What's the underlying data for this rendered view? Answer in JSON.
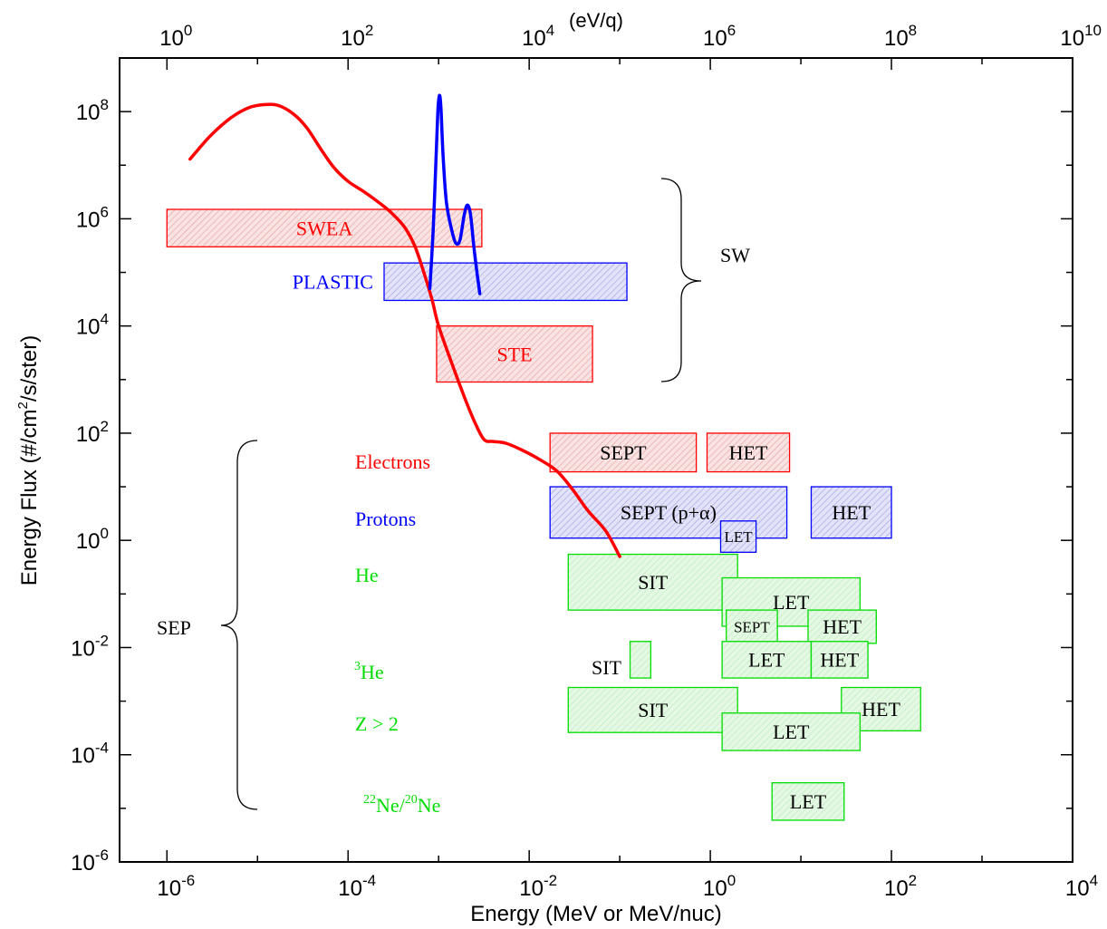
{
  "chart_data": {
    "type": "line",
    "title": "",
    "xlabel": "Energy (MeV or MeV/nuc)",
    "ylabel": "Energy Flux (#/cm²/s/ster)",
    "ylabel_parts": {
      "pre": "Energy Flux (#/cm",
      "sup": "2",
      "post": "/s/ster)"
    },
    "x_scale": "log",
    "y_scale": "log",
    "xlim": [
      3e-07,
      10000
    ],
    "ylim": [
      1e-06,
      1000000000.0
    ],
    "grid": false,
    "x_ticks": [
      {
        "value": 1e-06,
        "base": "10",
        "exp": "-6"
      },
      {
        "value": 0.0001,
        "base": "10",
        "exp": "-4"
      },
      {
        "value": 0.01,
        "base": "10",
        "exp": "-2"
      },
      {
        "value": 1,
        "base": "10",
        "exp": "0"
      },
      {
        "value": 100,
        "base": "10",
        "exp": "2"
      },
      {
        "value": 10000,
        "base": "10",
        "exp": "4"
      }
    ],
    "y_ticks": [
      {
        "value": 1e-06,
        "base": "10",
        "exp": "-6"
      },
      {
        "value": 0.0001,
        "base": "10",
        "exp": "-4"
      },
      {
        "value": 0.01,
        "base": "10",
        "exp": "-2"
      },
      {
        "value": 1,
        "base": "10",
        "exp": "0"
      },
      {
        "value": 100,
        "base": "10",
        "exp": "2"
      },
      {
        "value": 10000.0,
        "base": "10",
        "exp": "4"
      },
      {
        "value": 1000000.0,
        "base": "10",
        "exp": "6"
      },
      {
        "value": 100000000.0,
        "base": "10",
        "exp": "8"
      }
    ],
    "top_axis": {
      "label": "(eV/q)",
      "range": [
        0.3,
        10000000000.0
      ],
      "ticks": [
        {
          "value": 1,
          "base": "10",
          "exp": "0"
        },
        {
          "value": 100,
          "base": "10",
          "exp": "2"
        },
        {
          "value": 10000,
          "base": "10",
          "exp": "4"
        },
        {
          "value": 1000000.0,
          "base": "10",
          "exp": "6"
        },
        {
          "value": 100000000.0,
          "base": "10",
          "exp": "8"
        },
        {
          "value": 10000000000.0,
          "base": "10",
          "exp": "10"
        }
      ]
    },
    "colors": {
      "electron": "#ff0000",
      "electron_fill": "#f7d8d8",
      "proton": "#0000ff",
      "proton_fill": "#d8d8f5",
      "helium": "#00dd00",
      "helium_fill": "#dcf6dc",
      "text": "#000000"
    },
    "series": [
      {
        "kind": "electron-flux-curve",
        "color": "#ff0000",
        "points": [
          [
            1.8e-06,
            13000000.0
          ],
          [
            3e-06,
            35000000.0
          ],
          [
            5e-06,
            75000000.0
          ],
          [
            8e-06,
            118000000.0
          ],
          [
            1.2e-05,
            135000000.0
          ],
          [
            1.7e-05,
            130000000.0
          ],
          [
            2.5e-05,
            90000000.0
          ],
          [
            3.5e-05,
            50000000.0
          ],
          [
            5e-05,
            20000000.0
          ],
          [
            7e-05,
            9000000.0
          ],
          [
            0.0001,
            5000000.0
          ],
          [
            0.00015,
            3200000.0
          ],
          [
            0.00022,
            2000000.0
          ],
          [
            0.0003,
            1300000.0
          ],
          [
            0.00042,
            700000.0
          ],
          [
            0.00055,
            300000.0
          ],
          [
            0.0007,
            90000.0
          ],
          [
            0.00085,
            30000.0
          ],
          [
            0.001,
            10000.0
          ],
          [
            0.0014,
            2000.0
          ],
          [
            0.002,
            400
          ],
          [
            0.0026,
            140
          ],
          [
            0.0032,
            75
          ],
          [
            0.004,
            70
          ],
          [
            0.0055,
            65
          ],
          [
            0.008,
            50
          ],
          [
            0.012,
            35
          ],
          [
            0.02,
            20
          ],
          [
            0.03,
            9
          ],
          [
            0.045,
            3.5
          ],
          [
            0.07,
            1.5
          ],
          [
            0.1,
            0.5
          ]
        ]
      },
      {
        "kind": "solar-wind-ion-curve",
        "color": "#0000ff",
        "points": [
          [
            0.0008,
            50000.0
          ],
          [
            0.00087,
            600000.0
          ],
          [
            0.00093,
            10000000.0
          ],
          [
            0.00098,
            100000000.0
          ],
          [
            0.00102,
            200000000.0
          ],
          [
            0.00106,
            120000000.0
          ],
          [
            0.00112,
            15000000.0
          ],
          [
            0.00122,
            2000000.0
          ],
          [
            0.0014,
            600000.0
          ],
          [
            0.00155,
            350000.0
          ],
          [
            0.00172,
            400000.0
          ],
          [
            0.00192,
            1200000.0
          ],
          [
            0.00208,
            1800000.0
          ],
          [
            0.00225,
            1200000.0
          ],
          [
            0.00245,
            300000.0
          ],
          [
            0.00265,
            100000.0
          ],
          [
            0.00285,
            40000.0
          ]
        ]
      }
    ],
    "instrument_boxes": [
      {
        "label": "SWEA",
        "group": "electron",
        "x": [
          1e-06,
          0.003
        ],
        "y": [
          300000.0,
          1500000.0
        ]
      },
      {
        "label": "PLASTIC",
        "group": "proton",
        "x": [
          0.00025,
          0.12
        ],
        "y": [
          30000.0,
          150000.0
        ]
      },
      {
        "label": "STE",
        "group": "electron",
        "x": [
          0.00095,
          0.05
        ],
        "y": [
          900,
          10000.0
        ]
      },
      {
        "label": "SEPT",
        "group": "electron",
        "x": [
          0.017,
          0.7
        ],
        "y": [
          19,
          100
        ]
      },
      {
        "label": "HET",
        "group": "electron",
        "x": [
          0.92,
          7.5
        ],
        "y": [
          19,
          100
        ]
      },
      {
        "label": "SEPT (p+α)",
        "group": "proton",
        "x": [
          0.017,
          7.0
        ],
        "y": [
          1.1,
          10
        ]
      },
      {
        "label": "HET",
        "group": "proton",
        "x": [
          13,
          100
        ],
        "y": [
          1.1,
          10
        ]
      },
      {
        "label": "LET",
        "group": "proton",
        "x": [
          1.3,
          3.2
        ],
        "y": [
          0.6,
          2.3
        ]
      },
      {
        "label": "SIT",
        "group": "helium",
        "x": [
          0.027,
          2.0
        ],
        "y": [
          0.05,
          0.55
        ]
      },
      {
        "label": "LET",
        "group": "helium",
        "x": [
          1.35,
          45
        ],
        "y": [
          0.025,
          0.2
        ]
      },
      {
        "label": "SEPT",
        "group": "helium",
        "x": [
          1.5,
          5.5
        ],
        "y": [
          0.012,
          0.05
        ]
      },
      {
        "label": "HET",
        "group": "helium",
        "x": [
          12,
          68
        ],
        "y": [
          0.012,
          0.05
        ]
      },
      {
        "label": "",
        "group": "helium",
        "x": [
          0.13,
          0.22
        ],
        "y": [
          0.0027,
          0.013
        ]
      },
      {
        "label": "LET",
        "group": "helium",
        "x": [
          1.35,
          13
        ],
        "y": [
          0.0027,
          0.013
        ]
      },
      {
        "label": "HET",
        "group": "helium",
        "x": [
          13,
          55
        ],
        "y": [
          0.0027,
          0.013
        ]
      },
      {
        "label": "SIT",
        "group": "helium",
        "x": [
          0.027,
          2.0
        ],
        "y": [
          0.00026,
          0.0018
        ]
      },
      {
        "label": "HET",
        "group": "helium",
        "x": [
          28,
          210
        ],
        "y": [
          0.00028,
          0.0018
        ]
      },
      {
        "label": "LET",
        "group": "helium",
        "x": [
          1.35,
          45
        ],
        "y": [
          0.00012,
          0.0006
        ]
      },
      {
        "label": "LET",
        "group": "helium",
        "x": [
          4.8,
          30
        ],
        "y": [
          6e-06,
          3e-05
        ]
      }
    ],
    "annotations": {
      "sw": "SW",
      "sep": "SEP",
      "electrons": "Electrons",
      "protons": "Protons",
      "he": "He",
      "he3": {
        "sup": "3",
        "text": "He"
      },
      "z_gt_2": "Z > 2",
      "ne": {
        "sup1": "22",
        "t1": "Ne/",
        "sup2": "20",
        "t2": "Ne"
      },
      "sit_3he": "SIT"
    }
  }
}
